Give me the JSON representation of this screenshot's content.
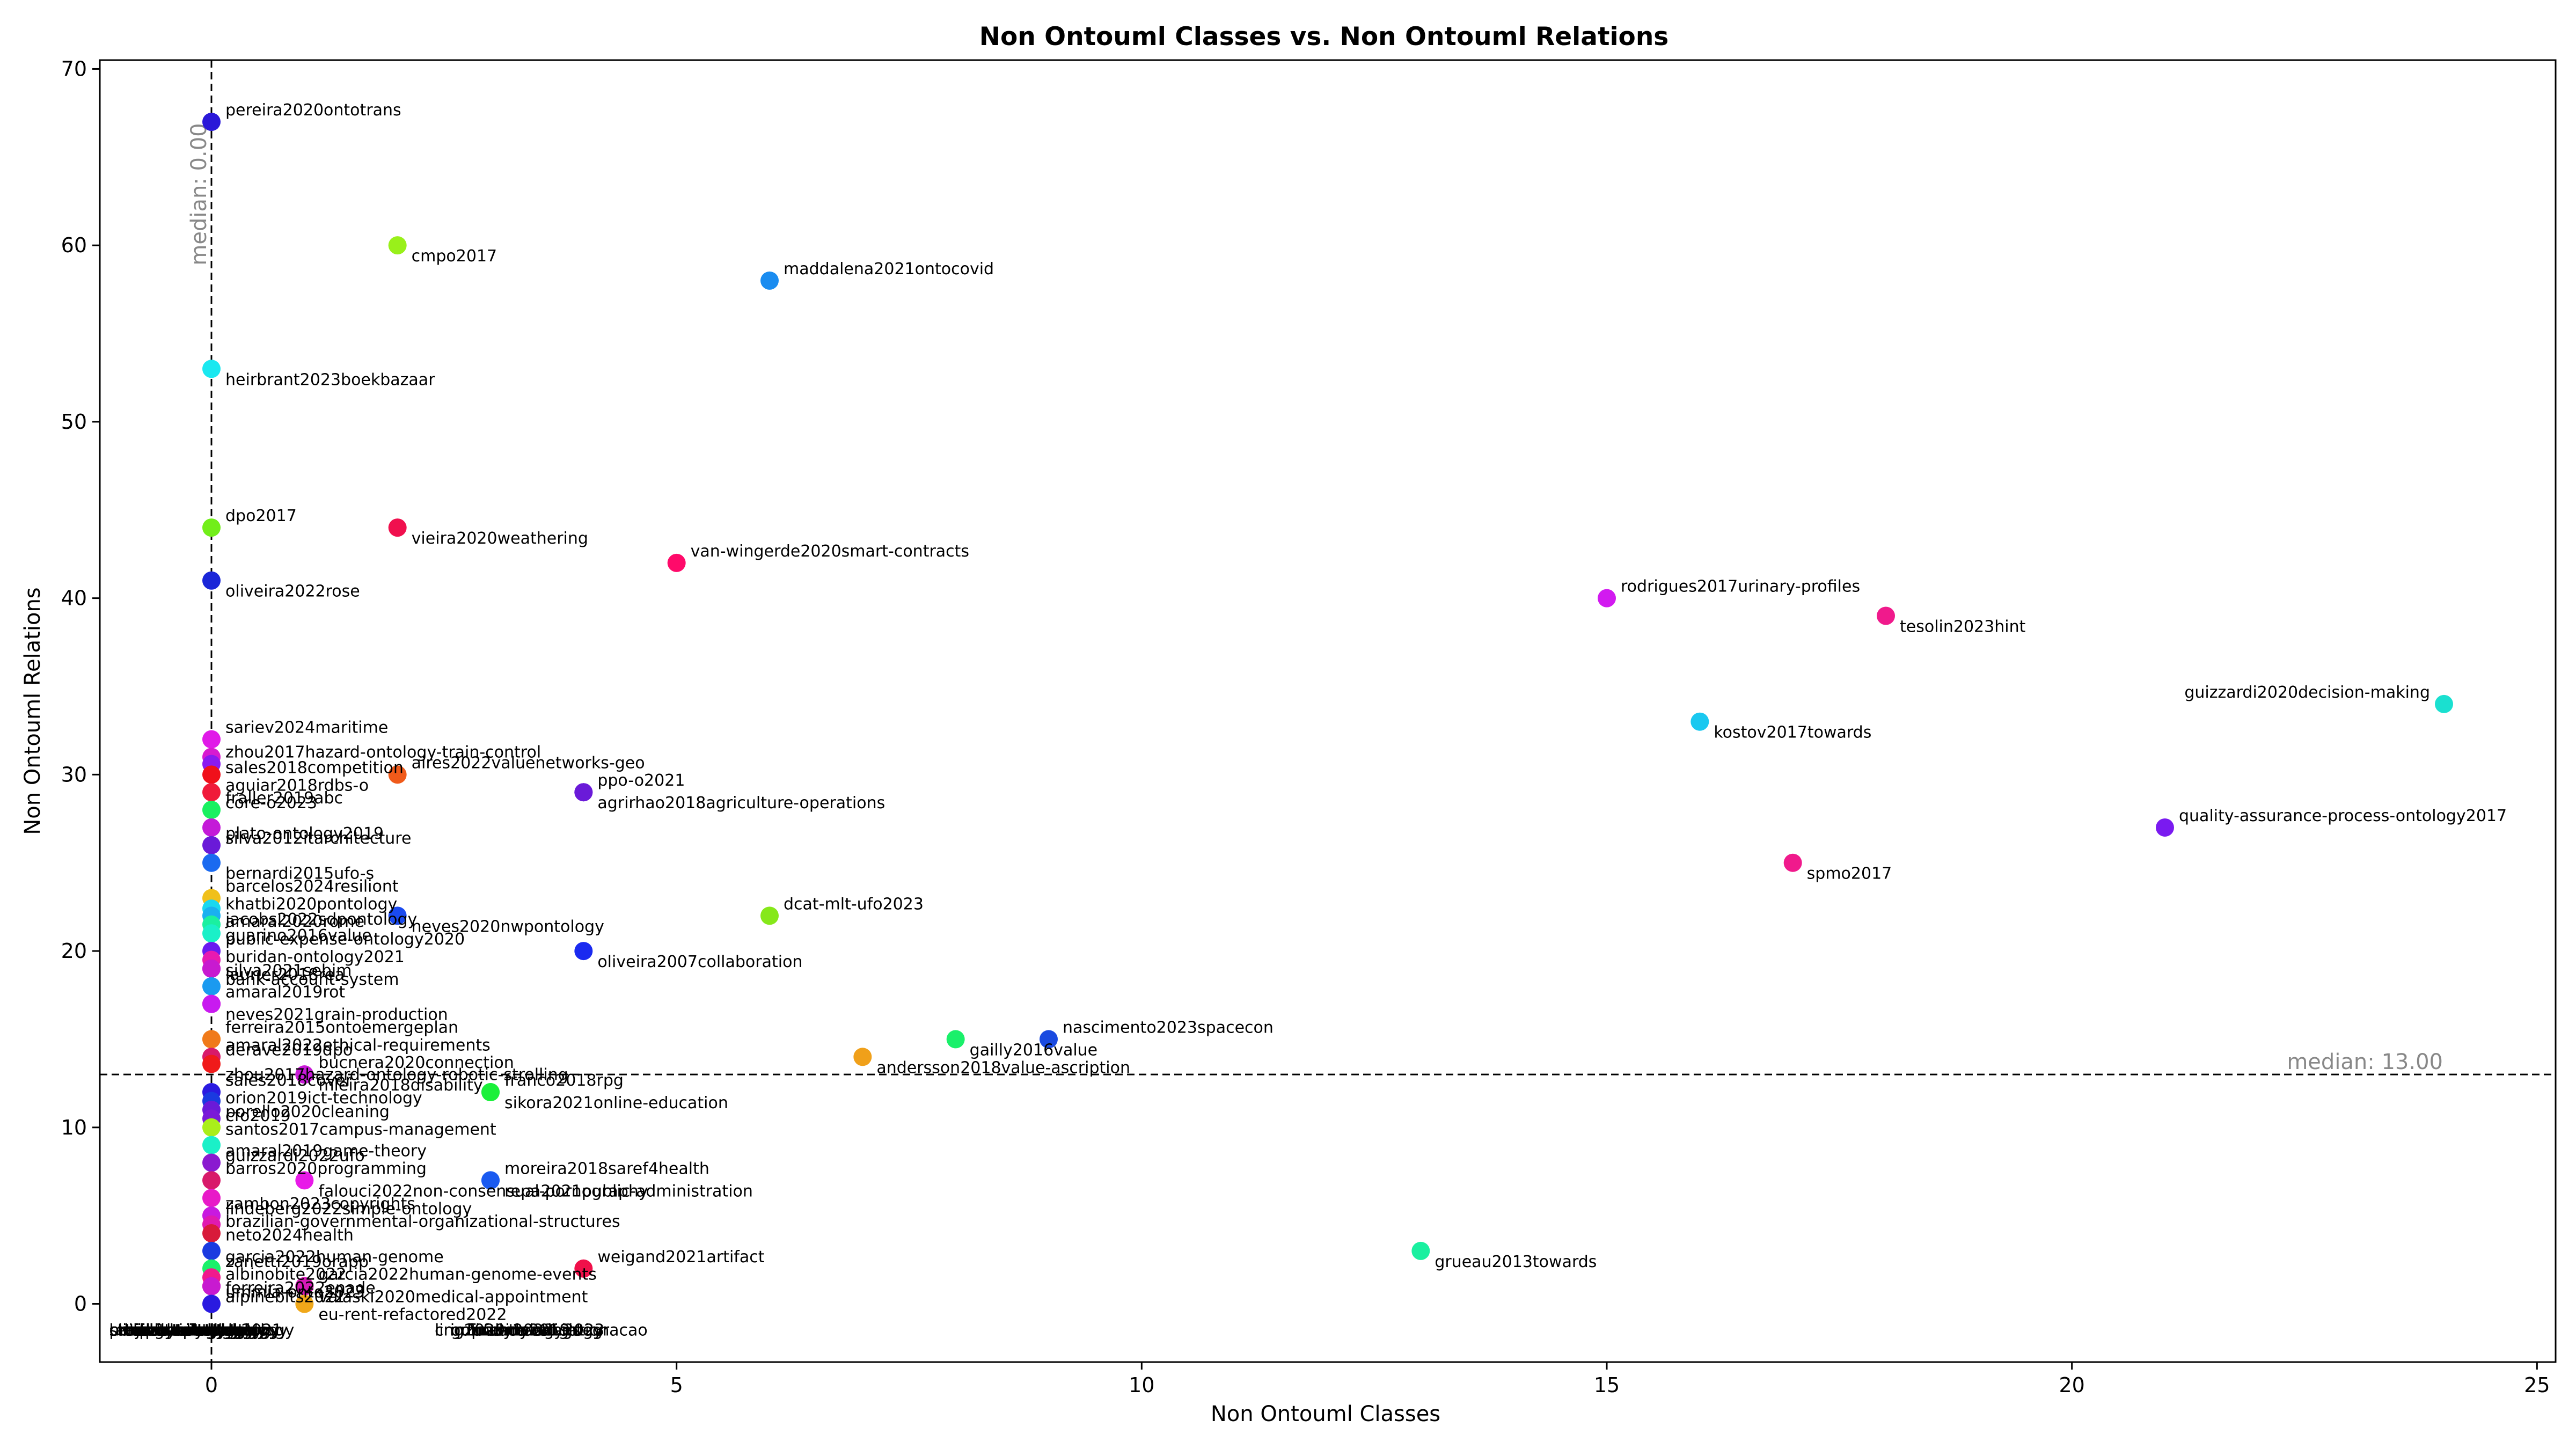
{
  "chart_data": {
    "type": "scatter",
    "title": "Non Ontouml Classes vs. Non Ontouml Relations",
    "xlabel": "Non Ontouml Classes",
    "ylabel": "Non Ontouml Relations",
    "xlim": [
      -1.2,
      25.2
    ],
    "ylim": [
      -3.3,
      70.5
    ],
    "xticks": [
      0,
      5,
      10,
      15,
      20,
      25
    ],
    "yticks": [
      0,
      10,
      20,
      30,
      40,
      50,
      60,
      70
    ],
    "grid": false,
    "median_x": {
      "value": 0.0,
      "label": "median: 0.00"
    },
    "median_y": {
      "value": 13.0,
      "label": "median: 13.00"
    },
    "points": [
      {
        "label": "pereira2020ontotrans",
        "x": 0,
        "y": 67,
        "color": "#2a18d8"
      },
      {
        "label": "cmpo2017",
        "x": 2,
        "y": 60,
        "color": "#99f01a"
      },
      {
        "label": "maddalena2021ontocovid",
        "x": 6,
        "y": 58,
        "color": "#1a8cf0"
      },
      {
        "label": "heirbrant2023boekbazaar",
        "x": 0,
        "y": 53,
        "color": "#1ae8f0"
      },
      {
        "label": "dpo2017",
        "x": 0,
        "y": 44,
        "color": "#72ee1a"
      },
      {
        "label": "vieira2020weathering",
        "x": 2,
        "y": 44,
        "color": "#f0104e"
      },
      {
        "label": "van-wingerde2020smart-contracts",
        "x": 5,
        "y": 42,
        "color": "#ff0a6a"
      },
      {
        "label": "oliveira2022rose",
        "x": 0,
        "y": 41,
        "color": "#1a26d8"
      },
      {
        "label": "rodrigues2017urinary-profiles",
        "x": 15,
        "y": 40,
        "color": "#d21af0"
      },
      {
        "label": "tesolin2023hint",
        "x": 18,
        "y": 39,
        "color": "#f01a8c"
      },
      {
        "label": "guizzardi2020decision-making",
        "x": 24,
        "y": 34,
        "color": "#1ae0d0"
      },
      {
        "label": "kostov2017towards",
        "x": 16,
        "y": 33,
        "color": "#1ac8f0"
      },
      {
        "label": "sariev2024maritime",
        "x": 0,
        "y": 32,
        "color": "#e01ae8"
      },
      {
        "label": "sales2018competition",
        "x": 0,
        "y": 31,
        "color": "#d81ad0"
      },
      {
        "label": "zhou2017hazard-ontology-train-control",
        "x": 0,
        "y": 30.6,
        "color": "#8a1af0"
      },
      {
        "label": "aguiar2018rdbs-o",
        "x": 0,
        "y": 30,
        "color": "#f0101a"
      },
      {
        "label": "aires2022valuenetworks-geo",
        "x": 2,
        "y": 30,
        "color": "#f05a1a"
      },
      {
        "label": "agrirhao2018agriculture-operations",
        "x": 4,
        "y": 29,
        "color": "#7a1af0"
      },
      {
        "label": "ppo-o2021",
        "x": 4,
        "y": 29,
        "color": "#6a1ad8"
      },
      {
        "label": "core-o2023",
        "x": 0,
        "y": 29,
        "color": "#f01a3a"
      },
      {
        "label": "fraller2019abc",
        "x": 0,
        "y": 28,
        "color": "#1af060"
      },
      {
        "label": "silva2012itarchitecture",
        "x": 0,
        "y": 27,
        "color": "#c41ad8"
      },
      {
        "label": "plato-ontology2019",
        "x": 0,
        "y": 26,
        "color": "#6a1ad8"
      },
      {
        "label": "bernardi2015ufo-s",
        "x": 0,
        "y": 25,
        "color": "#1a6af0"
      },
      {
        "label": "quality-assurance-process-ontology2017",
        "x": 21,
        "y": 27,
        "color": "#7a1af0"
      },
      {
        "label": "spmo2017",
        "x": 17,
        "y": 25,
        "color": "#f01a8c"
      },
      {
        "label": "barcelos2024resiliont",
        "x": 0,
        "y": 23,
        "color": "#f0c01a"
      },
      {
        "label": "jacobs2022sdpontology",
        "x": 0,
        "y": 22.4,
        "color": "#1ad8f0"
      },
      {
        "label": "khatbi2020pontology",
        "x": 0,
        "y": 22,
        "color": "#1ab0f0"
      },
      {
        "label": "neves2020nwpontology",
        "x": 2,
        "y": 22,
        "color": "#1a4af0"
      },
      {
        "label": "dcat-mlt-ufo2023",
        "x": 6,
        "y": 22,
        "color": "#86e81a"
      },
      {
        "label": "guarino2016value",
        "x": 0,
        "y": 21.5,
        "color": "#1af0a0"
      },
      {
        "label": "amaral2020rome",
        "x": 0,
        "y": 21,
        "color": "#1af0c8"
      },
      {
        "label": "oliveira2007collaboration",
        "x": 4,
        "y": 20,
        "color": "#1a2af0"
      },
      {
        "label": "public-expense-ontology2020",
        "x": 0,
        "y": 20,
        "color": "#6a1af0"
      },
      {
        "label": "silva2021sebim",
        "x": 0,
        "y": 19.5,
        "color": "#e81ab0"
      },
      {
        "label": "buridan-ontology2021",
        "x": 0,
        "y": 19,
        "color": "#a01ad8"
      },
      {
        "label": "bank-account-system",
        "x": 0,
        "y": 19,
        "color": "#c81ad0"
      },
      {
        "label": "laurier2018rea",
        "x": 0,
        "y": 18,
        "color": "#1a9af0"
      },
      {
        "label": "neves2021grain-production",
        "x": 0,
        "y": 17,
        "color": "#f01a8c"
      },
      {
        "label": "amaral2019rot",
        "x": 0,
        "y": 17,
        "color": "#c81af0"
      },
      {
        "label": "gailly2016value",
        "x": 8,
        "y": 15,
        "color": "#1af06a"
      },
      {
        "label": "nascimento2023spacecon",
        "x": 9,
        "y": 15,
        "color": "#1a4ae0"
      },
      {
        "label": "derave2019dpo",
        "x": 0,
        "y": 15,
        "color": "#f0a01a"
      },
      {
        "label": "ferreira2015ontoemergeplan",
        "x": 0,
        "y": 15,
        "color": "#f07a1a"
      },
      {
        "label": "andersson2018value-ascription",
        "x": 7,
        "y": 14,
        "color": "#f0a01a"
      },
      {
        "label": "amaral2022ethical-requirements",
        "x": 0,
        "y": 14,
        "color": "#d81a6a"
      },
      {
        "label": "zhou2017hazard-ontology-robotic-strolling",
        "x": 0,
        "y": 13.6,
        "color": "#f01a1a"
      },
      {
        "label": "bucnera2020connection",
        "x": 1,
        "y": 13,
        "color": "#e81ab8"
      },
      {
        "label": "mleira2018disability",
        "x": 1,
        "y": 13,
        "color": "#c81ad8"
      },
      {
        "label": "franco2018rpg",
        "x": 3,
        "y": 12,
        "color": "#1af05a"
      },
      {
        "label": "sikora2021online-education",
        "x": 3,
        "y": 12,
        "color": "#1af03a"
      },
      {
        "label": "sales2018cover",
        "x": 0,
        "y": 12,
        "color": "#2a1ae0"
      },
      {
        "label": "porello2020cleaning",
        "x": 0,
        "y": 11.5,
        "color": "#1a3ae0"
      },
      {
        "label": "orion2019ict-technology",
        "x": 0,
        "y": 11,
        "color": "#6a1ad8"
      },
      {
        "label": "santos2017campus-management",
        "x": 0,
        "y": 10.5,
        "color": "#7a1ad8"
      },
      {
        "label": "cfo2019",
        "x": 0,
        "y": 10,
        "color": "#aaee1a"
      },
      {
        "label": "guizzardi2022ufo",
        "x": 0,
        "y": 9,
        "color": "#1af0c8"
      },
      {
        "label": "amaral2019game-theory",
        "x": 0,
        "y": 8,
        "color": "#8a1ad0"
      },
      {
        "label": "repa2021public-administration",
        "x": 3,
        "y": 7,
        "color": "#1a6af0"
      },
      {
        "label": "moreira2018saref4health",
        "x": 3,
        "y": 7,
        "color": "#1a5af0"
      },
      {
        "label": "falouci2022non-consensual-pornography",
        "x": 1,
        "y": 7,
        "color": "#e81ae8"
      },
      {
        "label": "barros2020programming",
        "x": 0,
        "y": 7,
        "color": "#d81a6a"
      },
      {
        "label": "lindeberg2022simple-ontology",
        "x": 0,
        "y": 6,
        "color": "#e81ac8"
      },
      {
        "label": "zambon2023copyrights",
        "x": 0,
        "y": 5,
        "color": "#c81ae0"
      },
      {
        "label": "neto2024health",
        "x": 0,
        "y": 4.5,
        "color": "#e01ab0"
      },
      {
        "label": "brazilian-governmental-organizational-structures",
        "x": 0,
        "y": 4,
        "color": "#d81a3a"
      },
      {
        "label": "grueau2013towards",
        "x": 13,
        "y": 3,
        "color": "#1af0a0"
      },
      {
        "label": "weigand2021artifact",
        "x": 4,
        "y": 2,
        "color": "#f0104a"
      },
      {
        "label": "zanetti2019orapp",
        "x": 0,
        "y": 3,
        "color": "#1a3ae0"
      },
      {
        "label": "garcia2022human-genome",
        "x": 0,
        "y": 2,
        "color": "#1af06a"
      },
      {
        "label": "ferreira2022enade",
        "x": 0,
        "y": 1.5,
        "color": "#f01a8c"
      },
      {
        "label": "albinobite2022",
        "x": 0,
        "y": 1,
        "color": "#f01a5a"
      },
      {
        "label": "alpinebits2022",
        "x": 0,
        "y": 1,
        "color": "#c81ad0"
      },
      {
        "label": "garcia2022human-genome-events",
        "x": 1,
        "y": 1,
        "color": "#e81a9a"
      },
      {
        "label": "valaski2020medical-appointment",
        "x": 1,
        "y": 1,
        "color": "#d81ab8"
      },
      {
        "label": "ummia-onto2023",
        "x": 0,
        "y": 0,
        "color": "#2a1ae0"
      },
      {
        "label": "eu-rent-refactored2022",
        "x": 1,
        "y": 0,
        "color": "#f0a81a"
      }
    ],
    "bottom_labels": [
      "clinical-ontology2021",
      "tourism-ontology",
      "elections-ontology",
      "hospital-ontology",
      "project-ontology",
      "library-ontology",
      "school-ontology",
      "gym-ontology",
      "hotel-ontology",
      "airport-ontology",
      "zoo-ontology",
      "family-ontology",
      "student-ontology",
      "travel-ontology",
      "photo-ontology",
      "music-ontology",
      "retail-ontology",
      "car-ontology",
      "bank-ontology",
      "ling2020",
      "online-meetings",
      "fundy2022",
      "fundy2019",
      "criminal-investigation",
      "gdpr-ontology2023",
      "finance-ontology",
      "maternal-integracao"
    ]
  }
}
